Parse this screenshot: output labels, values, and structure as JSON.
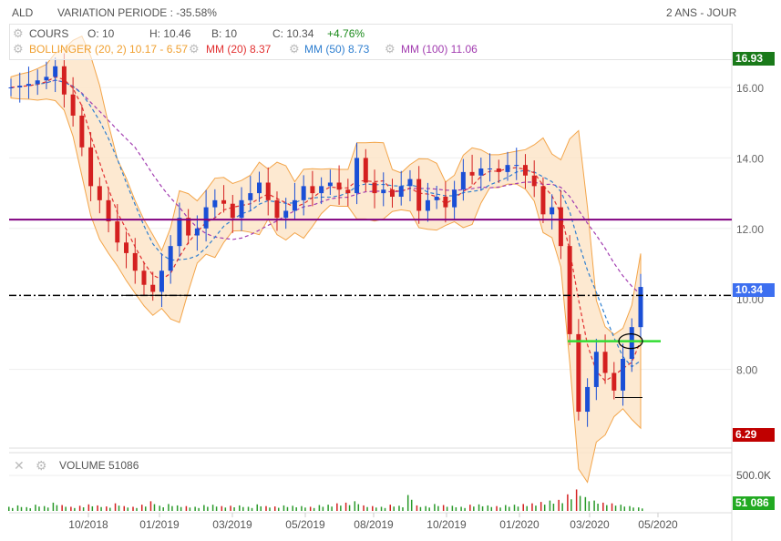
{
  "header": {
    "symbol": "ALD",
    "variation": "VARIATION PERIODE : -35.58%",
    "period": "2 ANS - JOUR"
  },
  "legend": {
    "cours": "COURS",
    "open": "O: 10",
    "high": "H: 10.46",
    "low": "B: 10",
    "close": "C: 10.34",
    "change": "+4.76%",
    "bollinger": "BOLLINGER (20, 2)  10.17 - 6.57",
    "mm20": "MM (20)  8.37",
    "mm50": "MM (50)  8.73",
    "mm100": "MM (100)  11.06"
  },
  "volume": {
    "label": "VOLUME  51086",
    "tick": "500.0K",
    "current": "51 086"
  },
  "tags": {
    "max": "16.93",
    "last": "10.34",
    "min": "6.29"
  },
  "colors": {
    "up": "#1a4fd6",
    "down": "#d42020",
    "boll": "#f3a54a",
    "mm20": "#e23030",
    "mm50": "#2f7fd0",
    "mm100": "#a23cb0",
    "purple_line": "#800080",
    "green_line": "#33dd33"
  },
  "chart_data": {
    "type": "candlestick",
    "y_ticks": [
      "16.00",
      "14.00",
      "12.00",
      "10.00",
      "8.00"
    ],
    "x_ticks": [
      "10/2018",
      "01/2019",
      "03/2019",
      "05/2019",
      "08/2019",
      "10/2019",
      "01/2020",
      "03/2020",
      "05/2020"
    ],
    "ylim": [
      6.0,
      17.0
    ],
    "closes": [
      16.0,
      16.05,
      16.1,
      16.2,
      16.3,
      16.6,
      15.8,
      15.2,
      14.3,
      13.2,
      12.8,
      12.2,
      11.6,
      11.3,
      10.8,
      10.4,
      10.2,
      10.8,
      11.5,
      12.3,
      11.8,
      12.0,
      12.6,
      12.8,
      12.7,
      12.3,
      12.8,
      13.0,
      13.3,
      12.8,
      12.3,
      12.5,
      12.8,
      13.2,
      13.0,
      13.2,
      13.3,
      13.1,
      13.0,
      14.0,
      13.3,
      13.0,
      13.1,
      12.9,
      13.2,
      13.4,
      12.5,
      12.8,
      12.9,
      12.6,
      13.1,
      13.6,
      13.5,
      13.7,
      13.7,
      13.6,
      13.8,
      13.8,
      13.5,
      13.2,
      12.4,
      12.6,
      11.5,
      9.0,
      6.8,
      7.5,
      8.5,
      7.9,
      7.4,
      8.3,
      9.2,
      10.34
    ],
    "volumes_k": [
      60,
      80,
      55,
      90,
      70,
      120,
      85,
      60,
      75,
      95,
      80,
      65,
      110,
      70,
      60,
      90,
      140,
      75,
      100,
      80,
      70,
      60,
      85,
      90,
      70,
      75,
      80,
      60,
      95,
      70,
      65,
      80,
      75,
      70,
      60,
      85,
      90,
      110,
      120,
      140,
      80,
      70,
      60,
      90,
      75,
      230,
      80,
      70,
      100,
      85,
      75,
      60,
      90,
      95,
      80,
      70,
      85,
      90,
      100,
      110,
      130,
      150,
      160,
      240,
      310,
      200,
      150,
      120,
      110,
      90,
      70,
      51
    ],
    "support_levels": [
      12.25,
      10.1,
      8.8,
      7.2
    ]
  }
}
